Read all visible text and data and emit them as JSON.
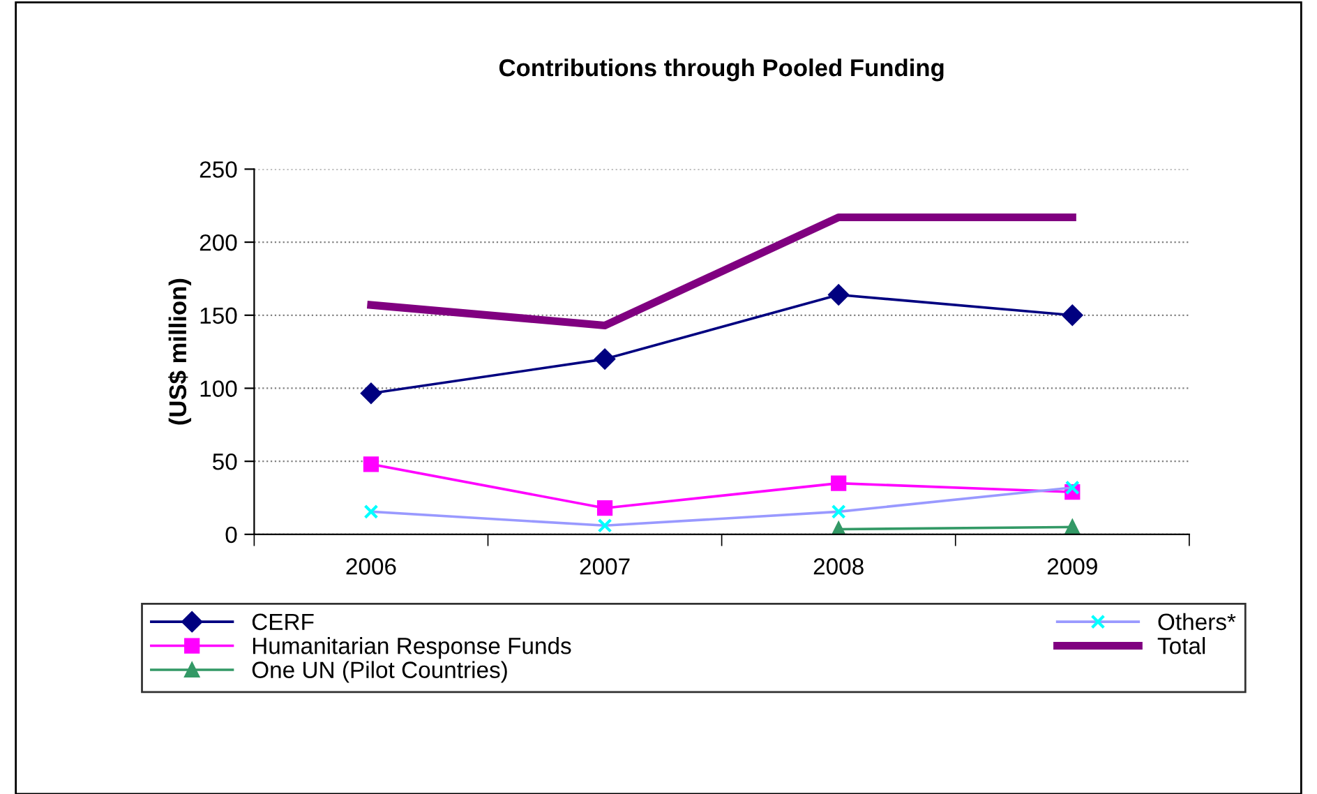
{
  "chart_data": {
    "type": "line",
    "title": "Contributions through Pooled Funding",
    "ylabel": "(US$ million)",
    "categories": [
      "2006",
      "2007",
      "2008",
      "2009"
    ],
    "series": [
      {
        "name": "CERF",
        "color": "#000080",
        "marker": "diamond",
        "values": [
          96.5,
          120,
          164,
          150
        ]
      },
      {
        "name": "Humanitarian Response Funds",
        "color": "#ff00ff",
        "marker": "square",
        "values": [
          48,
          18,
          35,
          29
        ]
      },
      {
        "name": "One UN (Pilot Countries)",
        "color": "#339966",
        "marker": "triangle",
        "values": [
          null,
          null,
          3.5,
          5
        ]
      },
      {
        "name": "Others*",
        "color": "#9999ff",
        "marker": "cross",
        "values": [
          15.5,
          6,
          15.5,
          32
        ]
      },
      {
        "name": "Total",
        "color": "#800080",
        "marker": "none",
        "values": [
          157,
          143,
          217,
          217
        ]
      }
    ],
    "ylim": [
      0,
      250
    ],
    "yticks": [
      0,
      50,
      100,
      150,
      200,
      250
    ],
    "grid": "y",
    "legend": "bottom",
    "line_style": "solid"
  }
}
